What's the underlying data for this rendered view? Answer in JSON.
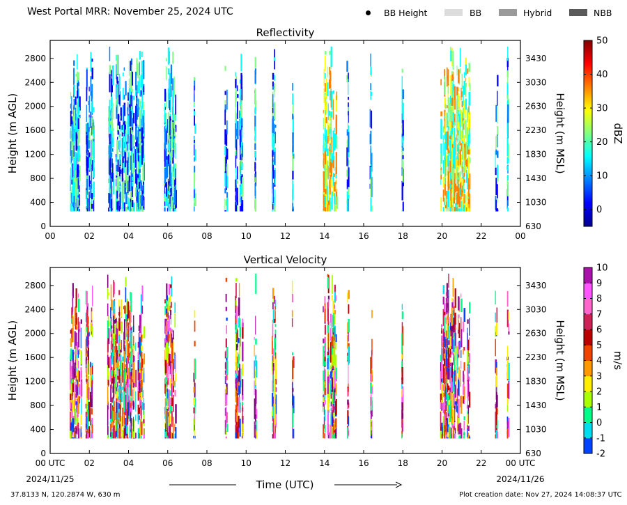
{
  "header": {
    "title": "West Portal MRR:  November 25, 2024 UTC",
    "legend": [
      {
        "label": "BB Height",
        "kind": "dot",
        "color": "#000000"
      },
      {
        "label": "BB",
        "kind": "patch",
        "color": "#dcdcdc"
      },
      {
        "label": "Hybrid",
        "kind": "patch",
        "color": "#9a9a9a"
      },
      {
        "label": "NBB",
        "kind": "patch",
        "color": "#5a5a5a"
      }
    ]
  },
  "footer": {
    "location": "37.8133 N, 120.2874 W, 630 m",
    "creation": "Plot creation date: Nov 27, 2024 14:08:37 UTC",
    "x_title": "Time (UTC)",
    "start_date": "2024/11/25",
    "end_date": "2024/11/26"
  },
  "chart_data": [
    {
      "type": "heatmap",
      "title": "Reflectivity",
      "ylabel": "Height (m AGL)",
      "y2label": "Height (m MSL)",
      "x_ticks": [
        "00",
        "02",
        "04",
        "06",
        "08",
        "10",
        "12",
        "14",
        "16",
        "18",
        "20",
        "22",
        "00"
      ],
      "y_ticks": [
        0,
        400,
        800,
        1200,
        1600,
        2000,
        2400,
        2800
      ],
      "y2_ticks": [
        630,
        1030,
        1430,
        1830,
        2230,
        2630,
        3030,
        3430
      ],
      "xlim_hours": [
        0,
        24
      ],
      "ylim": [
        0,
        3100
      ],
      "colorbar": {
        "label": "dBZ",
        "ticks": [
          0,
          10,
          20,
          30,
          40,
          50
        ],
        "range": [
          -5,
          50
        ],
        "colors": [
          "#00008f",
          "#0000ff",
          "#0080ff",
          "#00ffff",
          "#80ff80",
          "#ffff00",
          "#ff8000",
          "#ff0000",
          "#800000"
        ]
      },
      "echo_periods_hours": [
        [
          1.0,
          1.6
        ],
        [
          1.8,
          2.2
        ],
        [
          2.9,
          4.8
        ],
        [
          5.8,
          6.4
        ],
        [
          7.3,
          7.4
        ],
        [
          8.9,
          9.0
        ],
        [
          9.4,
          9.8
        ],
        [
          10.4,
          10.5
        ],
        [
          11.3,
          11.5
        ],
        [
          12.3,
          12.4
        ],
        [
          13.9,
          14.6
        ],
        [
          15.1,
          15.2
        ],
        [
          16.3,
          16.4
        ],
        [
          17.9,
          18.0
        ],
        [
          19.9,
          21.4
        ],
        [
          22.7,
          22.8
        ],
        [
          23.3,
          23.4
        ]
      ]
    },
    {
      "type": "heatmap",
      "title": "Vertical Velocity",
      "ylabel": "Height (m AGL)",
      "y2label": "Height (m MSL)",
      "x_ticks": [
        "00 UTC",
        "02",
        "04",
        "06",
        "08",
        "10",
        "12",
        "14",
        "16",
        "18",
        "20",
        "22",
        "00 UTC"
      ],
      "y_ticks": [
        0,
        400,
        800,
        1200,
        1600,
        2000,
        2400,
        2800
      ],
      "y2_ticks": [
        630,
        1030,
        1430,
        1830,
        2230,
        2630,
        3030,
        3430
      ],
      "xlim_hours": [
        0,
        24
      ],
      "ylim": [
        0,
        3100
      ],
      "colorbar": {
        "label": "m/s",
        "ticks": [
          -2,
          -1,
          0,
          1,
          2,
          3,
          4,
          5,
          6,
          7,
          8,
          9,
          10
        ],
        "range": [
          -2,
          10
        ],
        "colors": [
          "#0044ff",
          "#00ddee",
          "#00ff88",
          "#aaff00",
          "#ffee00",
          "#ff9900",
          "#ee4400",
          "#bb0000",
          "#cc2255",
          "#ff66cc",
          "#ff55ff",
          "#aa11aa",
          "#770077"
        ]
      },
      "echo_periods_hours": [
        [
          1.0,
          1.6
        ],
        [
          1.8,
          2.2
        ],
        [
          2.9,
          4.8
        ],
        [
          5.8,
          6.4
        ],
        [
          7.3,
          7.4
        ],
        [
          8.9,
          9.0
        ],
        [
          9.4,
          9.8
        ],
        [
          10.4,
          10.5
        ],
        [
          11.3,
          11.5
        ],
        [
          12.3,
          12.4
        ],
        [
          13.9,
          14.6
        ],
        [
          15.1,
          15.2
        ],
        [
          16.3,
          16.4
        ],
        [
          17.9,
          18.0
        ],
        [
          19.9,
          21.4
        ],
        [
          22.7,
          22.8
        ],
        [
          23.3,
          23.4
        ]
      ]
    }
  ]
}
